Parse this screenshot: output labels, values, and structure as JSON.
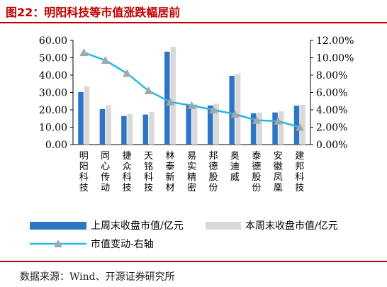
{
  "title": "图22：明阳科技等市值涨跌幅居前",
  "source": "数据来源：Wind、开源证券研究所",
  "chart_data": {
    "type": "bar",
    "categories": [
      "明阳科技",
      "同心传动",
      "捷众科技",
      "天铭科技",
      "林泰新材",
      "易实精密",
      "邦德股份",
      "奥迪威",
      "泰德股份",
      "安徽凤凰",
      "建邦科技"
    ],
    "series": [
      {
        "name": "上周末收盘市值/亿元",
        "type": "bar",
        "axis": "left",
        "color": "#2e75c6",
        "values": [
          30.2,
          20.4,
          16.5,
          17.3,
          53.5,
          22.5,
          22.5,
          39.6,
          18.0,
          18.5,
          22.4
        ]
      },
      {
        "name": "本周末收盘市值/亿元",
        "type": "bar",
        "axis": "left",
        "color": "#d9d9d9",
        "values": [
          33.6,
          22.6,
          17.7,
          18.8,
          56.3,
          23.3,
          23.5,
          40.8,
          18.5,
          19.2,
          22.9
        ]
      },
      {
        "name": "市值变动-右轴",
        "type": "line",
        "axis": "right",
        "color": "#29b6e8",
        "marker_color": "#a6a6a6",
        "values": [
          0.106,
          0.097,
          0.082,
          0.062,
          0.049,
          0.045,
          0.04,
          0.035,
          0.028,
          0.027,
          0.02
        ]
      }
    ],
    "y_left": {
      "ylim": [
        0,
        60
      ],
      "ticks": [
        "0.00",
        "10.00",
        "20.00",
        "30.00",
        "40.00",
        "50.00",
        "60.00"
      ]
    },
    "y_right": {
      "ylim": [
        0,
        0.12
      ],
      "ticks": [
        "0.00%",
        "2.00%",
        "4.00%",
        "6.00%",
        "8.00%",
        "10.00%",
        "12.00%"
      ]
    },
    "grid": false,
    "legend_position": "bottom"
  }
}
